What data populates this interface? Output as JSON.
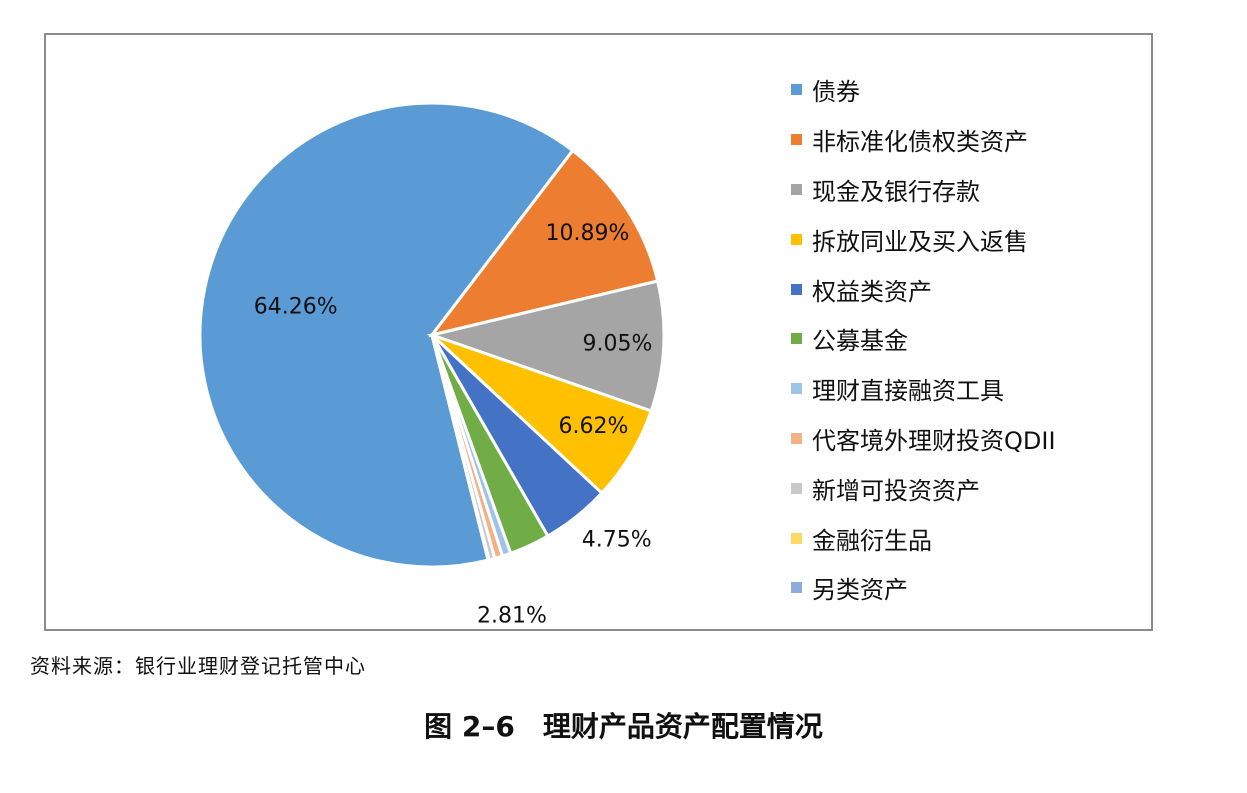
{
  "chart_data": {
    "type": "pie",
    "categories": [
      "债券",
      "非标准化债权类资产",
      "现金及银行存款",
      "拆放同业及买入返售",
      "权益类资产",
      "公募基金",
      "理财直接融资工具",
      "代客境外理财投资QDII",
      "新增可投资资产",
      "金融衍生品",
      "另类资产"
    ],
    "values": [
      64.26,
      10.89,
      9.05,
      6.62,
      4.75,
      2.81,
      0.6,
      0.55,
      0.4,
      0.04,
      0.03
    ],
    "data_labels": [
      "64.26%",
      "10.89%",
      "9.05%",
      "6.62%",
      "4.75%",
      "2.81%",
      "",
      "",
      "",
      "",
      ""
    ],
    "colors": [
      "#5b9bd5",
      "#ed7d31",
      "#a5a5a5",
      "#ffc000",
      "#4472c4",
      "#70ad47",
      "#9dc3e6",
      "#f4b183",
      "#c9c9c9",
      "#ffd966",
      "#8faadc"
    ],
    "legend_position": "right",
    "direction": "clockwise"
  },
  "source_note": "资料来源：银行业理财登记托管中心",
  "caption": "图 2–6　理财产品资产配置情况"
}
